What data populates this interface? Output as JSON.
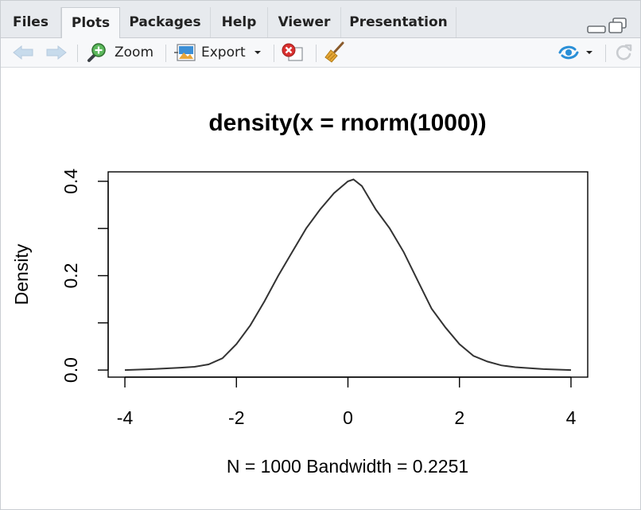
{
  "tabs": [
    {
      "label": "Files"
    },
    {
      "label": "Plots"
    },
    {
      "label": "Packages"
    },
    {
      "label": "Help"
    },
    {
      "label": "Viewer"
    },
    {
      "label": "Presentation"
    }
  ],
  "active_tab": "Plots",
  "toolbar": {
    "back_icon": "arrow-left-icon",
    "forward_icon": "arrow-right-icon",
    "zoom_label": "Zoom",
    "zoom_icon": "magnifier-plus-icon",
    "export_label": "Export",
    "export_icon": "image-export-icon",
    "remove_icon": "remove-plot-icon",
    "clear_icon": "broom-icon",
    "publish_icon": "publish-icon",
    "refresh_icon": "refresh-icon"
  },
  "colors": {
    "tab_bar_bg": "#e7eaee",
    "toolbar_bg": "#f7f8fa",
    "accent_blue": "#2a8fd7",
    "remove_red": "#d9302f",
    "curve": "#333333"
  },
  "chart_data": {
    "type": "line",
    "title": "density(x = rnorm(1000))",
    "xlabel": "N = 1000   Bandwidth = 0.2251",
    "ylabel": "Density",
    "xlim": [
      -4.3,
      4.3
    ],
    "ylim": [
      -0.015,
      0.42
    ],
    "xticks": [
      -4,
      -2,
      0,
      2,
      4
    ],
    "xtick_labels": [
      "-4",
      "-2",
      "0",
      "2",
      "4"
    ],
    "yticks": [
      0.0,
      0.1,
      0.2,
      0.3,
      0.4
    ],
    "ytick_labels": [
      "0.0",
      "",
      "0.2",
      "",
      "0.4"
    ],
    "grid": false,
    "series": [
      {
        "x": [
          -4.0,
          -3.5,
          -3.0,
          -2.75,
          -2.5,
          -2.25,
          -2.0,
          -1.75,
          -1.5,
          -1.25,
          -1.0,
          -0.75,
          -0.5,
          -0.25,
          0.0,
          0.1,
          0.25,
          0.5,
          0.75,
          1.0,
          1.25,
          1.5,
          1.75,
          2.0,
          2.25,
          2.5,
          2.75,
          3.0,
          3.5,
          4.0
        ],
        "y": [
          0.0,
          0.002,
          0.005,
          0.007,
          0.012,
          0.025,
          0.055,
          0.095,
          0.145,
          0.2,
          0.25,
          0.3,
          0.34,
          0.375,
          0.4,
          0.404,
          0.39,
          0.34,
          0.3,
          0.25,
          0.19,
          0.13,
          0.09,
          0.055,
          0.03,
          0.018,
          0.01,
          0.006,
          0.002,
          0.0
        ]
      }
    ]
  }
}
